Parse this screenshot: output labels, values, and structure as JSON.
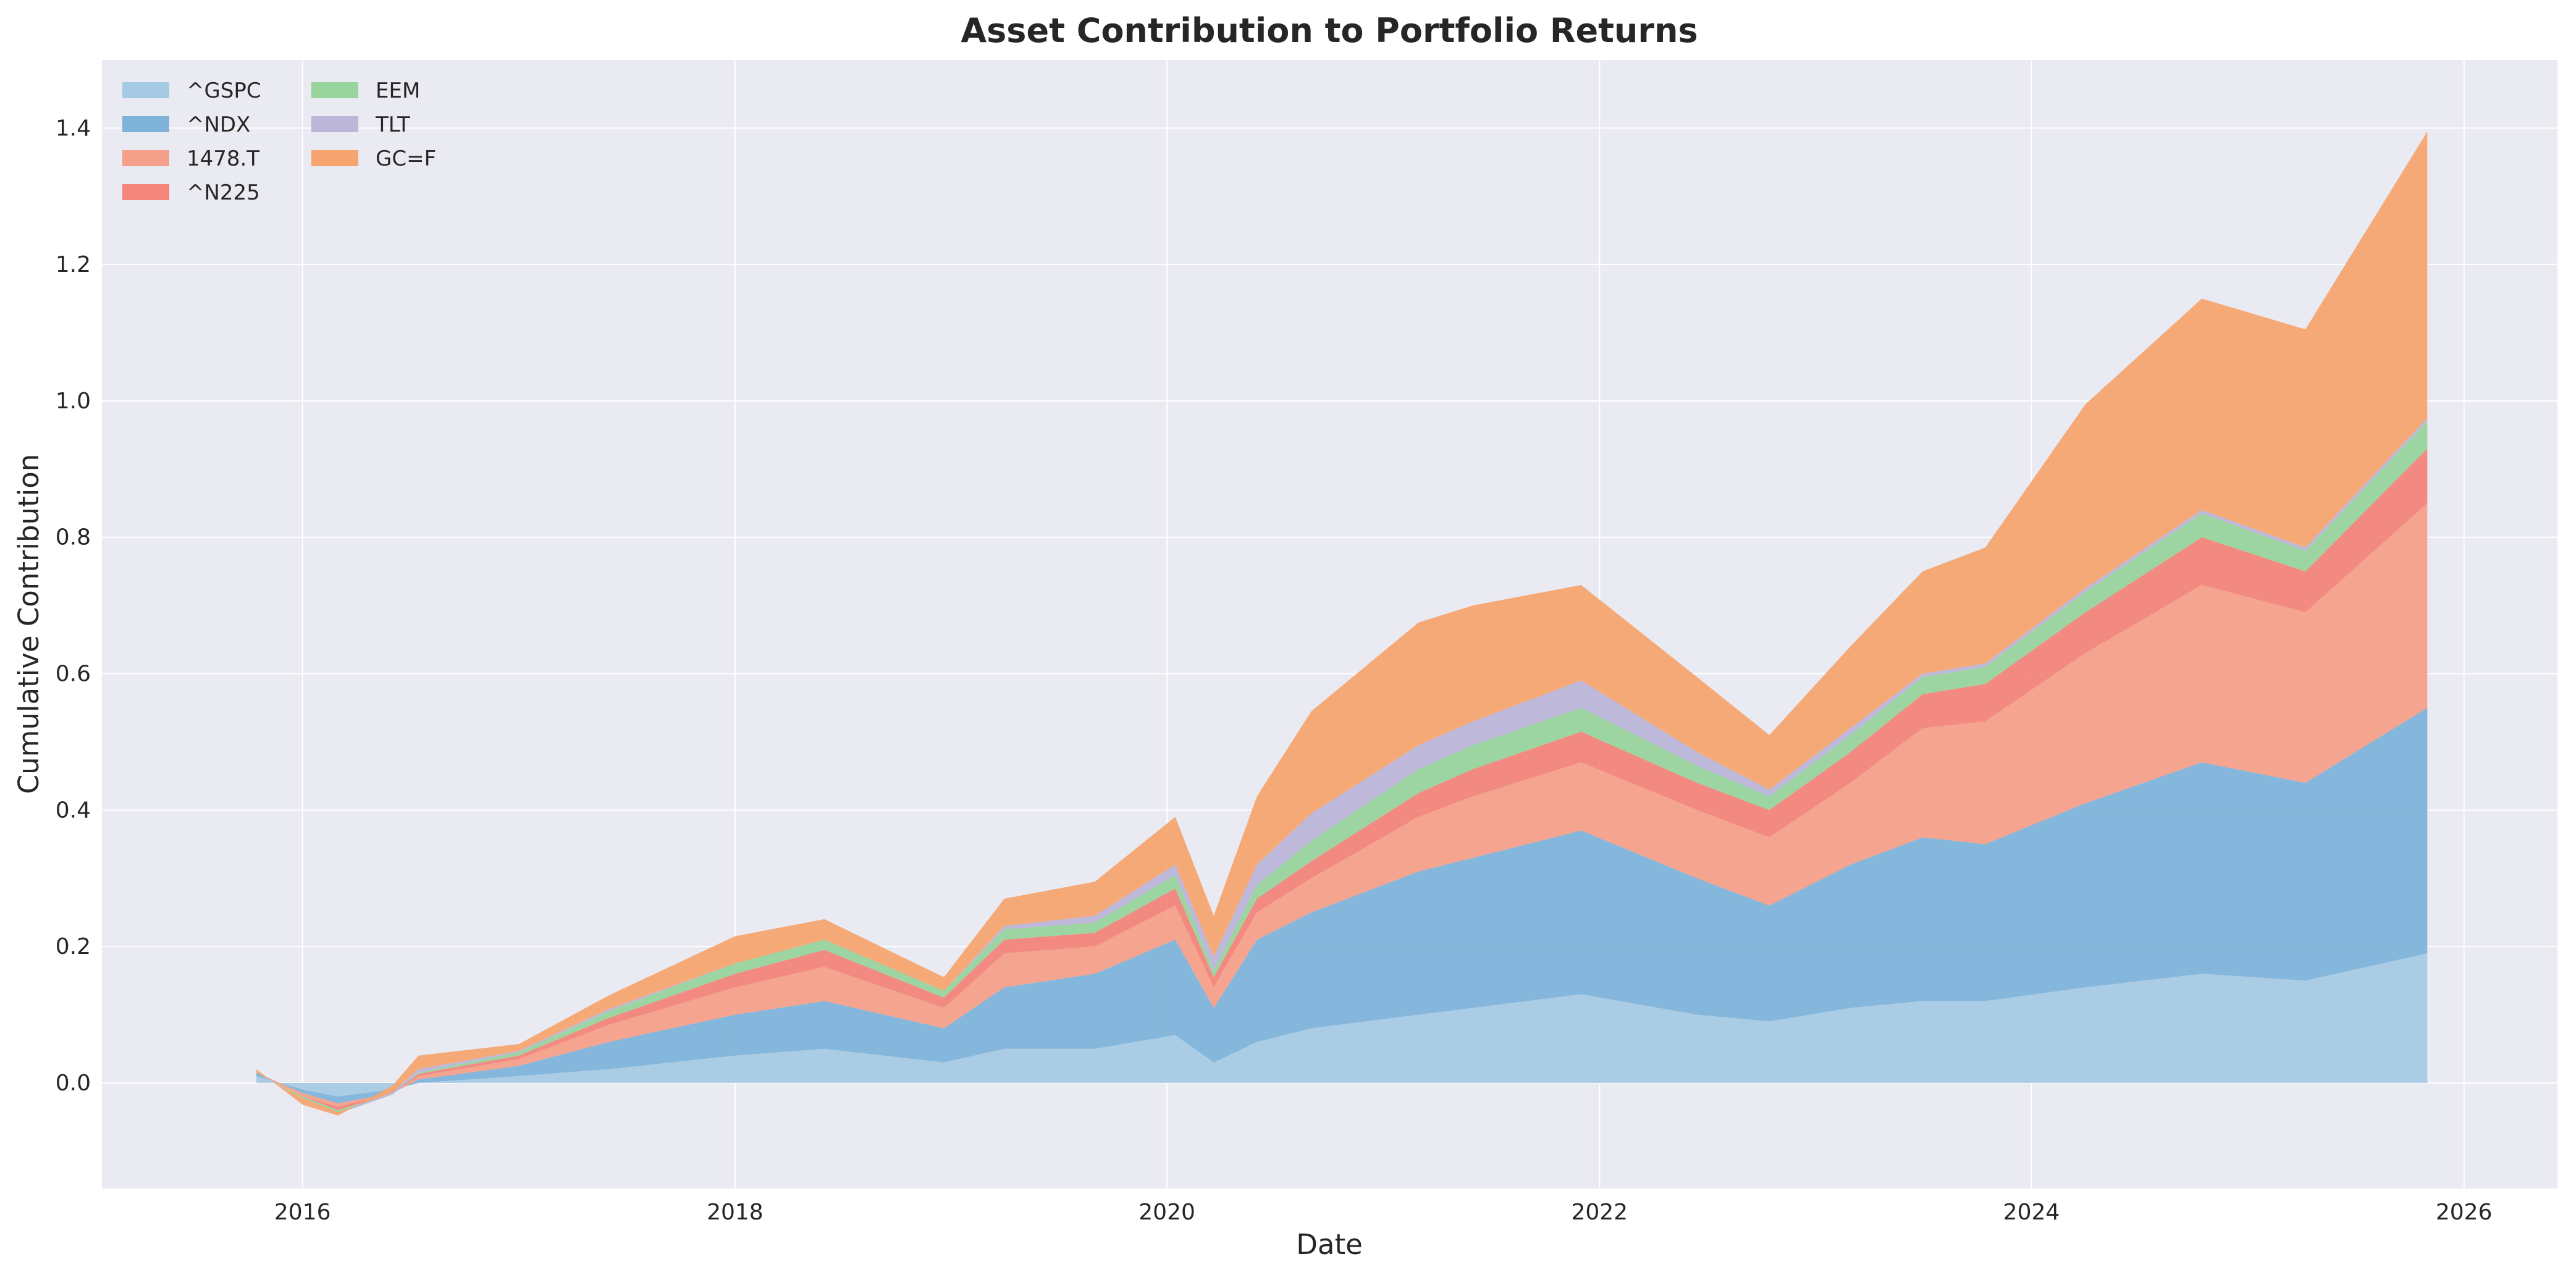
{
  "chart_data": {
    "type": "area",
    "stacked": true,
    "title": "Asset Contribution to Portfolio Returns",
    "xlabel": "Date",
    "ylabel": "Cumulative Contribution",
    "xlim": [
      "2015-01-27",
      "2026-06-08"
    ],
    "ylim": [
      -0.155,
      1.5
    ],
    "xticks": [
      "2016",
      "2018",
      "2020",
      "2022",
      "2024",
      "2026"
    ],
    "yticks": [
      "0.0",
      "0.2",
      "0.4",
      "0.6",
      "0.8",
      "1.0",
      "1.2",
      "1.4"
    ],
    "grid": true,
    "legend_position": "top-left",
    "legend_columns": 2,
    "x": [
      "2015-10-15",
      "2016-01-01",
      "2016-03-01",
      "2016-06-01",
      "2016-07-15",
      "2017-01-01",
      "2017-06-01",
      "2018-01-01",
      "2018-06-01",
      "2018-12-20",
      "2019-04-01",
      "2019-09-01",
      "2020-01-15",
      "2020-03-20",
      "2020-06-01",
      "2020-09-01",
      "2021-03-01",
      "2021-06-01",
      "2021-12-01",
      "2022-06-15",
      "2022-10-15",
      "2023-03-01",
      "2023-07-01",
      "2023-10-15",
      "2024-04-01",
      "2024-10-15",
      "2025-04-08",
      "2025-10-31"
    ],
    "series": [
      {
        "name": "^GSPC",
        "color": "#a6cae3",
        "values": [
          0.01,
          -0.01,
          -0.02,
          -0.01,
          0.0,
          0.01,
          0.02,
          0.04,
          0.05,
          0.03,
          0.05,
          0.05,
          0.07,
          0.03,
          0.06,
          0.08,
          0.1,
          0.11,
          0.13,
          0.1,
          0.09,
          0.11,
          0.12,
          0.12,
          0.14,
          0.16,
          0.15,
          0.19
        ]
      },
      {
        "name": "^NDX",
        "color": "#80b3d9",
        "values": [
          0.005,
          -0.005,
          -0.01,
          -0.005,
          0.005,
          0.015,
          0.04,
          0.06,
          0.07,
          0.05,
          0.09,
          0.11,
          0.14,
          0.08,
          0.15,
          0.17,
          0.21,
          0.22,
          0.24,
          0.2,
          0.17,
          0.21,
          0.24,
          0.23,
          0.27,
          0.31,
          0.29,
          0.36
        ]
      },
      {
        "name": "1478.T",
        "color": "#f5a08a",
        "values": [
          0.0,
          -0.005,
          -0.005,
          0.0,
          0.005,
          0.01,
          0.025,
          0.04,
          0.05,
          0.03,
          0.05,
          0.04,
          0.05,
          0.03,
          0.04,
          0.05,
          0.08,
          0.09,
          0.1,
          0.1,
          0.1,
          0.12,
          0.16,
          0.18,
          0.22,
          0.26,
          0.25,
          0.3
        ]
      },
      {
        "name": "^N225",
        "color": "#f3857a",
        "values": [
          0.0,
          0.0,
          -0.005,
          0.0,
          0.003,
          0.005,
          0.01,
          0.02,
          0.025,
          0.015,
          0.02,
          0.02,
          0.025,
          0.015,
          0.02,
          0.025,
          0.035,
          0.04,
          0.045,
          0.04,
          0.04,
          0.045,
          0.05,
          0.055,
          0.06,
          0.07,
          0.06,
          0.08
        ]
      },
      {
        "name": "EEM",
        "color": "#99d49d",
        "values": [
          0.0,
          -0.002,
          -0.005,
          -0.002,
          0.002,
          0.005,
          0.01,
          0.015,
          0.015,
          0.01,
          0.015,
          0.015,
          0.02,
          0.01,
          0.02,
          0.03,
          0.035,
          0.035,
          0.035,
          0.025,
          0.02,
          0.025,
          0.025,
          0.025,
          0.03,
          0.035,
          0.03,
          0.04
        ]
      },
      {
        "name": "TLT",
        "color": "#bcb6d8",
        "values": [
          0.0,
          0.0,
          0.002,
          0.003,
          0.005,
          0.002,
          0.003,
          0.0,
          0.0,
          0.0,
          0.005,
          0.01,
          0.015,
          0.02,
          0.03,
          0.04,
          0.035,
          0.035,
          0.04,
          0.02,
          0.01,
          0.01,
          0.005,
          0.005,
          0.005,
          0.005,
          0.005,
          0.005
        ]
      },
      {
        "name": "GC=F",
        "color": "#f6a570",
        "values": [
          0.005,
          -0.01,
          -0.005,
          0.01,
          0.02,
          0.01,
          0.02,
          0.04,
          0.03,
          0.02,
          0.04,
          0.05,
          0.07,
          0.06,
          0.1,
          0.15,
          0.18,
          0.17,
          0.14,
          0.11,
          0.08,
          0.12,
          0.15,
          0.17,
          0.27,
          0.31,
          0.32,
          0.42
        ]
      }
    ]
  }
}
